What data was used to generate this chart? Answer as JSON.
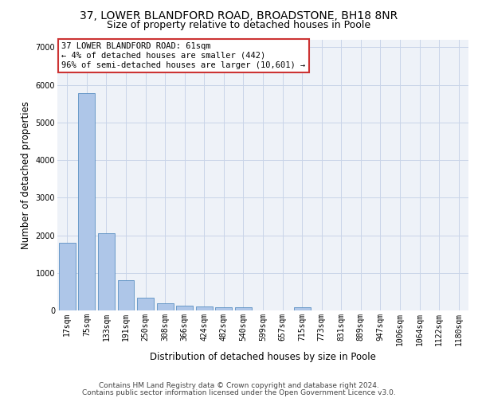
{
  "title1": "37, LOWER BLANDFORD ROAD, BROADSTONE, BH18 8NR",
  "title2": "Size of property relative to detached houses in Poole",
  "xlabel": "Distribution of detached houses by size in Poole",
  "ylabel": "Number of detached properties",
  "categories": [
    "17sqm",
    "75sqm",
    "133sqm",
    "191sqm",
    "250sqm",
    "308sqm",
    "366sqm",
    "424sqm",
    "482sqm",
    "540sqm",
    "599sqm",
    "657sqm",
    "715sqm",
    "773sqm",
    "831sqm",
    "889sqm",
    "947sqm",
    "1006sqm",
    "1064sqm",
    "1122sqm",
    "1180sqm"
  ],
  "values": [
    1790,
    5780,
    2060,
    810,
    340,
    190,
    120,
    105,
    95,
    90,
    0,
    0,
    75,
    0,
    0,
    0,
    0,
    0,
    0,
    0,
    0
  ],
  "bar_color": "#aec6e8",
  "bar_edge_color": "#5a8fc2",
  "highlight_color": "#cc3333",
  "annotation_text": "37 LOWER BLANDFORD ROAD: 61sqm\n← 4% of detached houses are smaller (442)\n96% of semi-detached houses are larger (10,601) →",
  "annotation_box_color": "#ffffff",
  "annotation_box_edge": "#cc3333",
  "ylim": [
    0,
    7200
  ],
  "yticks": [
    0,
    1000,
    2000,
    3000,
    4000,
    5000,
    6000,
    7000
  ],
  "footer1": "Contains HM Land Registry data © Crown copyright and database right 2024.",
  "footer2": "Contains public sector information licensed under the Open Government Licence v3.0.",
  "bg_color": "#eef2f8",
  "grid_color": "#c8d4e8",
  "title1_fontsize": 10,
  "title2_fontsize": 9,
  "annot_fontsize": 7.5,
  "axis_label_fontsize": 8.5,
  "tick_fontsize": 7,
  "footer_fontsize": 6.5
}
